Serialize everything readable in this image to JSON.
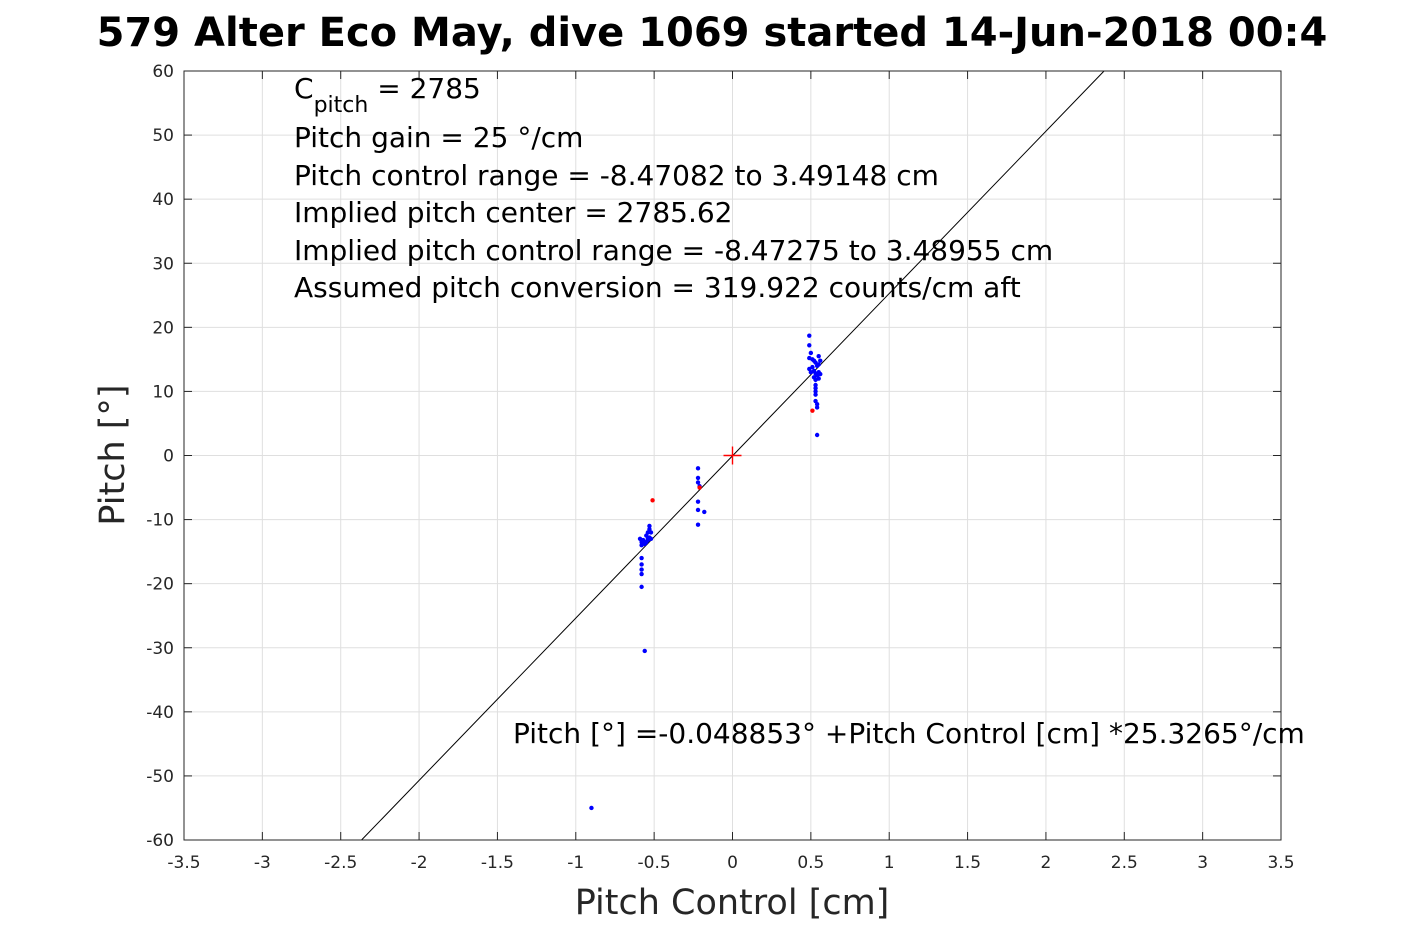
{
  "chart_data": {
    "type": "scatter",
    "title": "579 Alter Eco May, dive 1069 started 14-Jun-2018 00:4",
    "xlabel": "Pitch Control [cm]",
    "ylabel": "Pitch [°]",
    "xlim": [
      -3.5,
      3.5
    ],
    "ylim": [
      -60,
      60
    ],
    "grid": true,
    "xticks": [
      -3.5,
      -3,
      -2.5,
      -2,
      -1.5,
      -1,
      -0.5,
      0,
      0.5,
      1,
      1.5,
      2,
      2.5,
      3,
      3.5
    ],
    "xtick_labels": [
      "-3.5",
      "-3",
      "-2.5",
      "-2",
      "-1.5",
      "-1",
      "-0.5",
      "0",
      "0.5",
      "1",
      "1.5",
      "2",
      "2.5",
      "3",
      "3.5"
    ],
    "yticks": [
      -60,
      -50,
      -40,
      -30,
      -20,
      -10,
      0,
      10,
      20,
      30,
      40,
      50,
      60
    ],
    "ytick_labels": [
      "-60",
      "-50",
      "-40",
      "-30",
      "-20",
      "-10",
      "0",
      "10",
      "20",
      "30",
      "40",
      "50",
      "60"
    ],
    "annotations": {
      "c_pitch_main": "C",
      "c_pitch_sub": "pitch",
      "c_pitch_value": " = 2785",
      "lines": [
        "Pitch gain = 25 °/cm",
        "Pitch control range = -8.47082 to 3.49148 cm",
        "Implied pitch center = 2785.62",
        "Implied pitch control range = -8.47275 to 3.48955 cm",
        "Assumed pitch conversion = 319.922 counts/cm aft"
      ],
      "fit_equation": "Pitch [°] =-0.048853° +Pitch Control [cm] *25.3265°/cm"
    },
    "fit_line": {
      "intercept": -0.048853,
      "slope": 25.3265,
      "color": "#000000"
    },
    "center_marker": {
      "x": 0,
      "y": 0,
      "color": "#ff0000",
      "shape": "plus"
    },
    "series": [
      {
        "color": "#0000ff",
        "points": [
          [
            -0.9,
            -55.0
          ],
          [
            -0.56,
            -30.5
          ],
          [
            -0.58,
            -20.5
          ],
          [
            -0.58,
            -18.5
          ],
          [
            -0.58,
            -17.8
          ],
          [
            -0.58,
            -17.0
          ],
          [
            -0.58,
            -16.0
          ],
          [
            -0.59,
            -13.0
          ],
          [
            -0.58,
            -13.5
          ],
          [
            -0.58,
            -14.0
          ],
          [
            -0.57,
            -13.2
          ],
          [
            -0.56,
            -13.8
          ],
          [
            -0.55,
            -12.5
          ],
          [
            -0.54,
            -13.0
          ],
          [
            -0.54,
            -12.0
          ],
          [
            -0.53,
            -11.5
          ],
          [
            -0.53,
            -11.0
          ],
          [
            -0.55,
            -13.5
          ],
          [
            -0.54,
            -13.2
          ],
          [
            -0.53,
            -12.8
          ],
          [
            -0.52,
            -12.0
          ],
          [
            -0.52,
            -13.0
          ],
          [
            -0.22,
            -2.0
          ],
          [
            -0.22,
            -3.5
          ],
          [
            -0.22,
            -4.2
          ],
          [
            -0.21,
            -4.8
          ],
          [
            -0.22,
            -7.2
          ],
          [
            -0.22,
            -8.5
          ],
          [
            -0.18,
            -8.8
          ],
          [
            -0.22,
            -10.8
          ],
          [
            0.49,
            18.7
          ],
          [
            0.49,
            17.2
          ],
          [
            0.5,
            16.0
          ],
          [
            0.49,
            15.2
          ],
          [
            0.51,
            15.0
          ],
          [
            0.52,
            14.8
          ],
          [
            0.53,
            14.5
          ],
          [
            0.54,
            14.0
          ],
          [
            0.55,
            15.5
          ],
          [
            0.56,
            14.8
          ],
          [
            0.49,
            13.5
          ],
          [
            0.5,
            13.0
          ],
          [
            0.51,
            13.8
          ],
          [
            0.52,
            13.2
          ],
          [
            0.53,
            12.8
          ],
          [
            0.54,
            12.5
          ],
          [
            0.55,
            13.0
          ],
          [
            0.56,
            12.7
          ],
          [
            0.52,
            12.2
          ],
          [
            0.53,
            11.8
          ],
          [
            0.53,
            11.0
          ],
          [
            0.53,
            10.5
          ],
          [
            0.53,
            10.0
          ],
          [
            0.53,
            9.5
          ],
          [
            0.53,
            8.5
          ],
          [
            0.54,
            8.0
          ],
          [
            0.54,
            7.5
          ],
          [
            0.54,
            3.2
          ],
          [
            0.55,
            12.0
          ],
          [
            0.55,
            14.2
          ]
        ]
      },
      {
        "color": "#ff0000",
        "points": [
          [
            -0.51,
            -7.0
          ],
          [
            -0.21,
            -5.0
          ],
          [
            0.51,
            7.0
          ]
        ]
      }
    ]
  }
}
